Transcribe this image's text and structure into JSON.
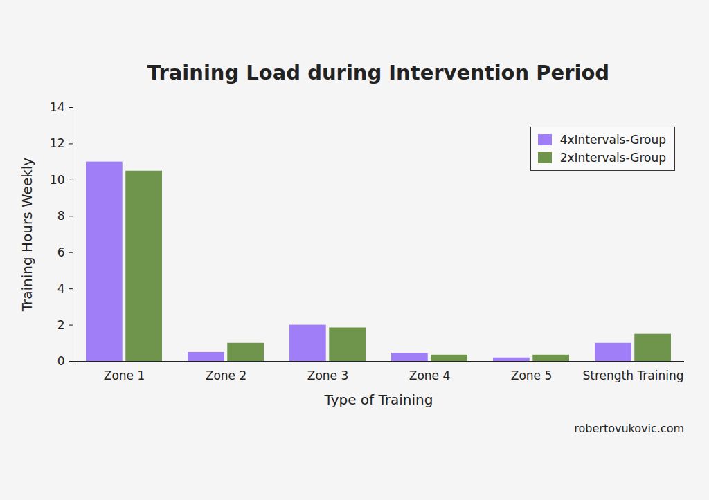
{
  "chart_data": {
    "type": "bar",
    "title": "Training Load during Intervention Period",
    "x_label": "Type of Training",
    "y_label": "Training Hours Weekly",
    "caption": "robertovukovic.com",
    "categories": [
      "Zone 1",
      "Zone 2",
      "Zone 3",
      "Zone 4",
      "Zone 5",
      "Strength Training"
    ],
    "series": [
      {
        "name": "4xIntervals-Group",
        "color": "#a07ef7",
        "values": [
          11,
          0.5,
          2.0,
          0.45,
          0.2,
          1.0
        ]
      },
      {
        "name": "2xIntervals-Group",
        "color": "#6e954b",
        "values": [
          10.5,
          1.0,
          1.85,
          0.35,
          0.35,
          1.5
        ]
      }
    ],
    "ylim": [
      0,
      14
    ],
    "yticks": [
      0,
      2,
      4,
      6,
      8,
      10,
      12,
      14
    ],
    "grid": false,
    "legend": "upper right"
  }
}
